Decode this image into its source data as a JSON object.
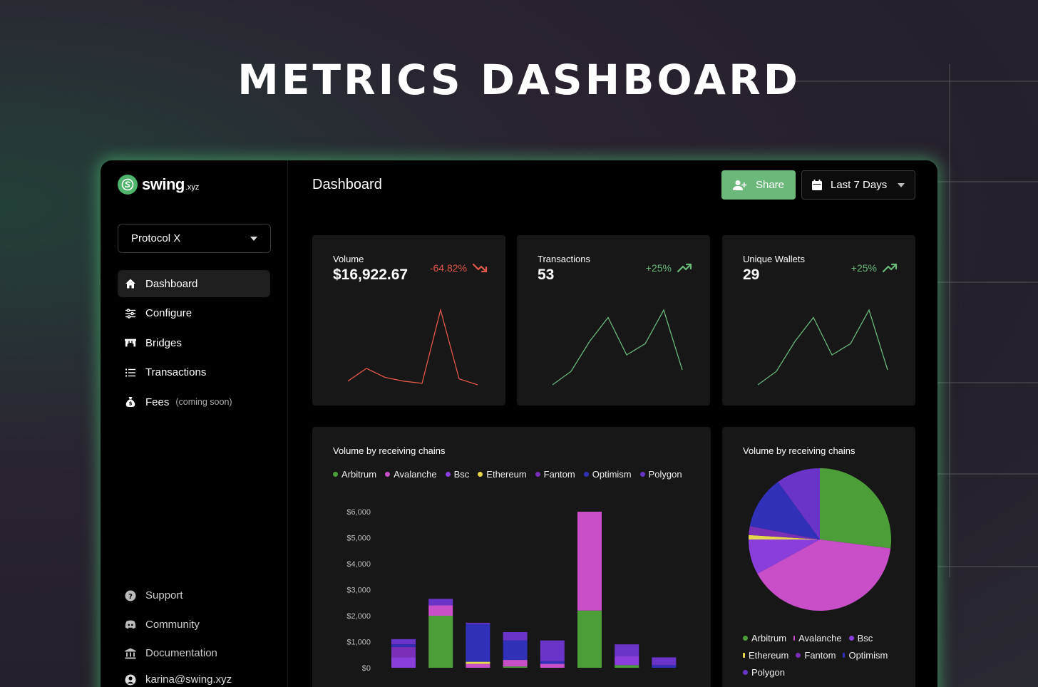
{
  "hero": {
    "title": "METRICS DASHBOARD"
  },
  "brand": {
    "name": "swing",
    "tld": ".xyz"
  },
  "protocol_select": {
    "value": "Protocol X"
  },
  "nav": {
    "items": [
      {
        "label": "Dashboard",
        "icon": "home-icon",
        "active": true
      },
      {
        "label": "Configure",
        "icon": "sliders-icon"
      },
      {
        "label": "Bridges",
        "icon": "bridge-icon"
      },
      {
        "label": "Transactions",
        "icon": "list-icon"
      },
      {
        "label": "Fees",
        "icon": "money-bag-icon",
        "note": "(coming soon)"
      }
    ],
    "bottom": [
      {
        "label": "Support",
        "icon": "help-icon"
      },
      {
        "label": "Community",
        "icon": "discord-icon"
      },
      {
        "label": "Documentation",
        "icon": "bank-icon"
      }
    ],
    "user": {
      "email": "karina@swing.xyz",
      "icon": "user-icon"
    }
  },
  "header": {
    "title": "Dashboard",
    "share_label": "Share",
    "range_label": "Last 7 Days"
  },
  "colors": {
    "accent": "#6bb87a",
    "down": "#e2574c",
    "Arbitrum": "#4c9f38",
    "Avalanche": "#c94fc9",
    "Bsc": "#8a3fdc",
    "Ethereum": "#e6d84a",
    "Fantom": "#7b2fb8",
    "Optimism": "#3030b8",
    "Polygon": "#6a34c8"
  },
  "metrics": [
    {
      "label": "Volume",
      "value": "$16,922.67",
      "change": "-64.82%",
      "direction": "down",
      "spark": [
        5,
        22,
        10,
        5,
        2,
        100,
        8,
        0
      ]
    },
    {
      "label": "Transactions",
      "value": "53",
      "change": "+25%",
      "direction": "up",
      "spark": [
        0,
        18,
        58,
        90,
        40,
        55,
        100,
        20
      ]
    },
    {
      "label": "Unique Wallets",
      "value": "29",
      "change": "+25%",
      "direction": "up",
      "spark": [
        0,
        18,
        58,
        90,
        40,
        55,
        100,
        20
      ]
    }
  ],
  "chart_data": [
    {
      "type": "bar",
      "title": "Volume by receiving chains",
      "stacked": true,
      "yticks": [
        "$6,000",
        "$5,000",
        "$4,000",
        "$3,000",
        "$2,000",
        "$1,000",
        "$0"
      ],
      "ylim": [
        0,
        6000
      ],
      "categories": [
        "",
        "",
        "",
        "",
        "",
        "",
        "",
        ""
      ],
      "series": [
        {
          "name": "Arbitrum",
          "values": [
            0,
            2000,
            0,
            50,
            0,
            2200,
            100,
            0
          ]
        },
        {
          "name": "Avalanche",
          "values": [
            0,
            400,
            150,
            250,
            150,
            3800,
            0,
            0
          ]
        },
        {
          "name": "Bsc",
          "values": [
            400,
            0,
            0,
            0,
            0,
            0,
            350,
            0
          ]
        },
        {
          "name": "Ethereum",
          "values": [
            0,
            0,
            80,
            0,
            0,
            0,
            0,
            0
          ]
        },
        {
          "name": "Fantom",
          "values": [
            400,
            0,
            0,
            0,
            0,
            0,
            0,
            0
          ]
        },
        {
          "name": "Optimism",
          "values": [
            100,
            0,
            1450,
            750,
            100,
            0,
            0,
            100
          ]
        },
        {
          "name": "Polygon",
          "values": [
            200,
            250,
            50,
            320,
            800,
            0,
            450,
            300
          ]
        }
      ],
      "legend": [
        "Arbitrum",
        "Avalanche",
        "Bsc",
        "Ethereum",
        "Fantom",
        "Optimism",
        "Polygon"
      ]
    },
    {
      "type": "pie",
      "title": "Volume by receiving chains",
      "slices": [
        {
          "name": "Arbitrum",
          "value": 27
        },
        {
          "name": "Avalanche",
          "value": 40
        },
        {
          "name": "Bsc",
          "value": 8
        },
        {
          "name": "Ethereum",
          "value": 1
        },
        {
          "name": "Fantom",
          "value": 2
        },
        {
          "name": "Optimism",
          "value": 12
        },
        {
          "name": "Polygon",
          "value": 10
        }
      ],
      "legend_rows": [
        [
          "Arbitrum",
          "Avalanche",
          "Bsc"
        ],
        [
          "Ethereum",
          "Fantom",
          "Optimism"
        ],
        [
          "Polygon"
        ]
      ]
    }
  ]
}
